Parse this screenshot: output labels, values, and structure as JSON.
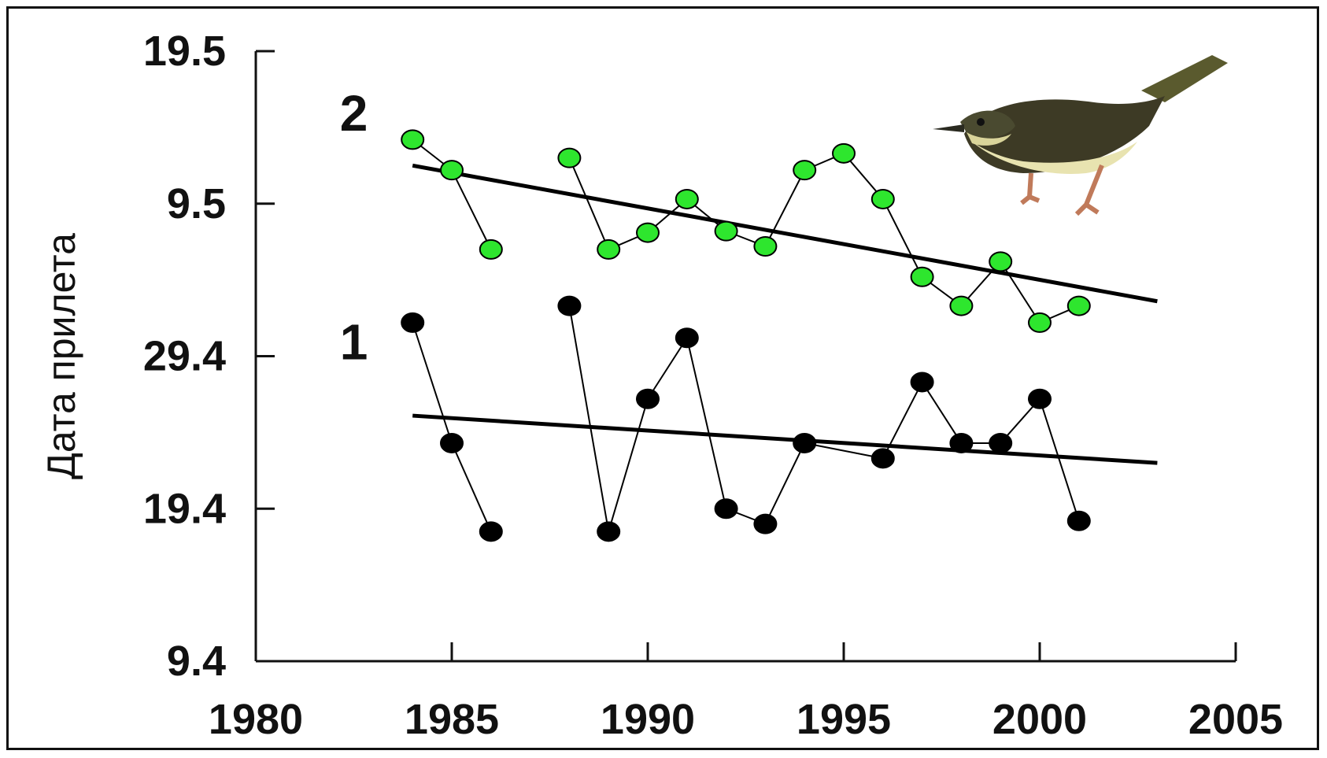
{
  "chart_data": {
    "type": "scatter",
    "title": "",
    "xlabel": "",
    "ylabel": "Дата прилета",
    "xlim": [
      1980,
      2005
    ],
    "ylim": [
      0,
      4
    ],
    "x_ticks": [
      1980,
      1985,
      1990,
      1995,
      2000,
      2005
    ],
    "x_tick_labels": [
      "1980",
      "1985",
      "1990",
      "1995",
      "2000",
      "2005"
    ],
    "y_ticks": [
      0,
      1,
      2,
      3,
      4
    ],
    "y_tick_labels": [
      "9.4",
      "19.4",
      "29.4",
      "9.5",
      "19.5"
    ],
    "grid": false,
    "legend": "none",
    "series": [
      {
        "name": "1",
        "color": "#000000",
        "marker_fill": "#000000",
        "x": [
          1984,
          1985,
          1986,
          1988,
          1989,
          1990,
          1991,
          1992,
          1993,
          1994,
          1996,
          1997,
          1998,
          1999,
          2000,
          2001
        ],
        "segments": [
          [
            0,
            2
          ],
          [
            3,
            15
          ]
        ],
        "values": [
          2.22,
          1.43,
          0.85,
          2.33,
          0.85,
          1.72,
          2.12,
          1.0,
          0.9,
          1.43,
          1.33,
          1.83,
          1.43,
          1.43,
          1.72,
          0.92
        ],
        "trend": {
          "x": [
            1984,
            2003
          ],
          "y": [
            1.61,
            1.3
          ]
        }
      },
      {
        "name": "2",
        "color": "#000000",
        "marker_fill": "#2ee62e",
        "x": [
          1984,
          1985,
          1986,
          1988,
          1989,
          1990,
          1991,
          1992,
          1993,
          1994,
          1995,
          1996,
          1997,
          1998,
          1999,
          2000,
          2001
        ],
        "segments": [
          [
            0,
            2
          ],
          [
            3,
            16
          ]
        ],
        "values": [
          3.42,
          3.22,
          2.7,
          3.3,
          2.7,
          2.81,
          3.03,
          2.82,
          2.72,
          3.22,
          3.33,
          3.03,
          2.52,
          2.33,
          2.62,
          2.22,
          2.33
        ],
        "trend": {
          "x": [
            1984,
            2003
          ],
          "y": [
            3.25,
            2.36
          ]
        }
      }
    ],
    "series_labels": [
      {
        "text": "1",
        "x": 1982.5,
        "y": 1.98
      },
      {
        "text": "2",
        "x": 1982.5,
        "y": 3.48
      }
    ]
  },
  "image": {
    "icon": "bird-illustration"
  }
}
